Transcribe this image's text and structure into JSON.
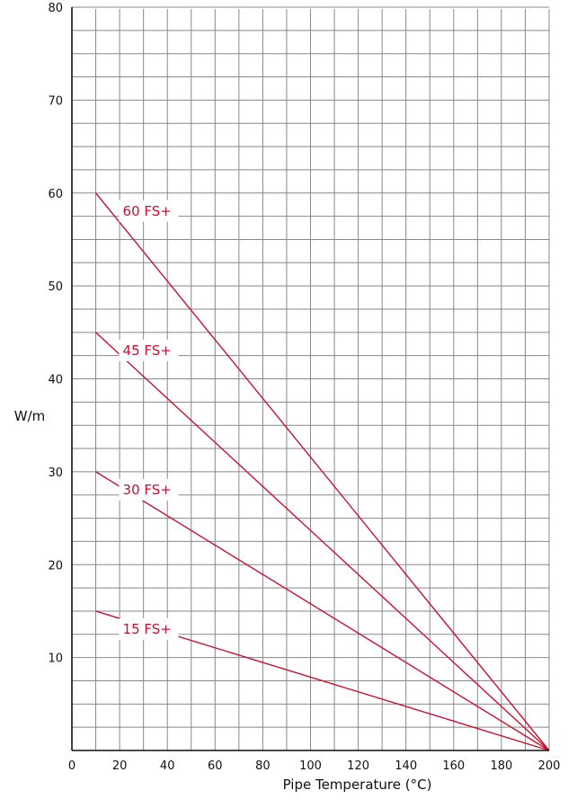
{
  "chart_data": {
    "type": "line",
    "title": "",
    "xlabel": "Pipe Temperature (°C)",
    "ylabel": "W/m",
    "xlim": [
      0,
      200
    ],
    "ylim": [
      0,
      80
    ],
    "x_ticks": [
      0,
      20,
      40,
      60,
      80,
      100,
      120,
      140,
      160,
      180,
      200
    ],
    "y_ticks": [
      10,
      20,
      30,
      40,
      50,
      60,
      70,
      80
    ],
    "grid": true,
    "minor_grid_step_x": 10,
    "minor_grid_step_y": 2.5,
    "series_color": "#c8102e",
    "series": [
      {
        "name": "60 FS+",
        "x": [
          10,
          200
        ],
        "y": [
          60,
          0
        ]
      },
      {
        "name": "45 FS+",
        "x": [
          10,
          200
        ],
        "y": [
          45,
          0
        ]
      },
      {
        "name": "30 FS+",
        "x": [
          10,
          200
        ],
        "y": [
          30,
          0
        ]
      },
      {
        "name": "15 FS+",
        "x": [
          10,
          200
        ],
        "y": [
          15,
          0
        ]
      }
    ]
  }
}
